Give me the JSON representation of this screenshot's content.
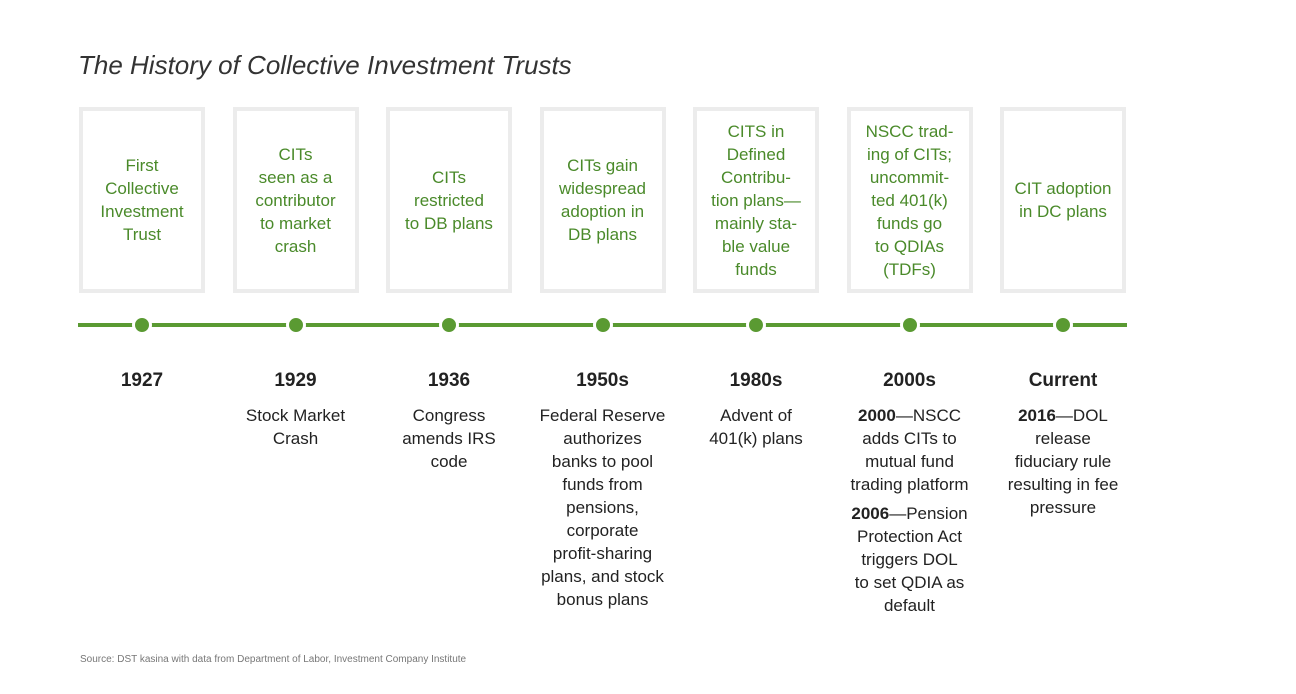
{
  "title": "The History of Collective Investment Trusts",
  "events": [
    {
      "box": [
        "First",
        "Collective",
        "Investment",
        "Trust"
      ],
      "year": "1927",
      "description": []
    },
    {
      "box": [
        "CITs",
        "seen as a",
        "contributor",
        "to market",
        "crash"
      ],
      "year": "1929",
      "description": [
        {
          "lines": [
            "Stock Market",
            "Crash"
          ]
        }
      ]
    },
    {
      "box": [
        "CITs",
        "restricted",
        "to DB plans"
      ],
      "year": "1936",
      "description": [
        {
          "lines": [
            "Congress",
            "amends IRS",
            "code"
          ]
        }
      ]
    },
    {
      "box": [
        "CITs gain",
        "widespread",
        "adoption in",
        "DB plans"
      ],
      "year": "1950s",
      "description": [
        {
          "lines": [
            "Federal Reserve",
            "authorizes",
            "banks to pool",
            "funds from",
            "pensions,",
            "corporate",
            "profit-sharing",
            "plans, and stock",
            "bonus plans"
          ]
        }
      ]
    },
    {
      "box": [
        "CITS in",
        "Defined",
        "Contribu-",
        "tion plans—",
        "mainly sta-",
        "ble value",
        "funds"
      ],
      "year": "1980s",
      "description": [
        {
          "lines": [
            "Advent of",
            "401(k) plans"
          ]
        }
      ]
    },
    {
      "box": [
        "NSCC trad-",
        "ing of CITs;",
        "uncommit-",
        "ted 401(k)",
        "funds go",
        "to QDIAs",
        "(TDFs)"
      ],
      "year": "2000s",
      "description": [
        {
          "lead": "2000",
          "lines": [
            "—NSCC",
            "adds CITs to",
            "mutual fund",
            "trading platform"
          ]
        },
        {
          "lead": "2006",
          "lines": [
            "—Pension",
            "Protection Act",
            "triggers DOL",
            "to set QDIA as",
            "default"
          ]
        }
      ]
    },
    {
      "box": [
        "CIT adoption",
        "in DC plans"
      ],
      "year": "Current",
      "description": [
        {
          "lead": "2016",
          "lines": [
            "—DOL",
            "release",
            "fiduciary rule",
            "resulting in fee",
            "pressure"
          ]
        }
      ]
    }
  ],
  "source": "Source: DST kasina with data from Department of Labor, Investment Company Institute"
}
